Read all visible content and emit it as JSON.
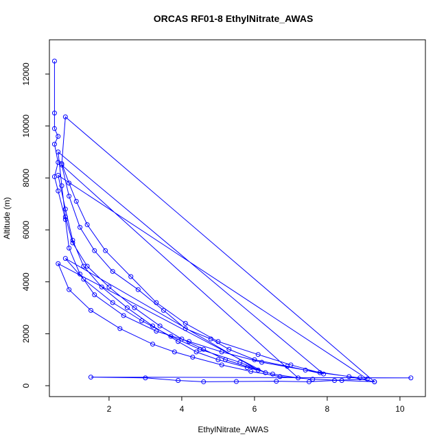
{
  "chart_data": {
    "type": "line",
    "title": "ORCAS RF01-8 EthylNitrate_AWAS",
    "x_label": "EthylNitrate_AWAS",
    "y_label": "Altitude (m)",
    "xlim": [
      0.36,
      10.7
    ],
    "ylim": [
      -420,
      13320
    ],
    "xticks": [
      2,
      4,
      6,
      8,
      10
    ],
    "yticks": [
      0,
      2000,
      4000,
      6000,
      8000,
      10000,
      12000
    ],
    "series": [
      {
        "name": "EthylNitrate_AWAS",
        "color": "#0000ff",
        "x": [
          0.5,
          0.5,
          0.5,
          0.6,
          0.5,
          0.6,
          0.5,
          0.6,
          0.8,
          0.9,
          1.2,
          1.6,
          2.4,
          3.3,
          4.2,
          5.1,
          6.2,
          7.4,
          8.6,
          9.3,
          0.8,
          0.7,
          0.9,
          1.1,
          1.4,
          1.9,
          2.6,
          3.3,
          4.1,
          5.0,
          6.1,
          7.0,
          7.8,
          8.9,
          10.3,
          1.5,
          3.0,
          3.9,
          4.6,
          5.5,
          6.6,
          7.5,
          8.2,
          9.1,
          0.6,
          0.8,
          1.0,
          1.3,
          1.8,
          2.5,
          3.2,
          3.9,
          4.4,
          5.0,
          5.8,
          6.5,
          7.2,
          0.7,
          0.9,
          1.2,
          1.6,
          2.1,
          2.8,
          3.5,
          4.1,
          4.8,
          5.3,
          6.0,
          6.9,
          7.9,
          0.6,
          0.7,
          0.8,
          1.0,
          1.4,
          2.0,
          2.7,
          3.4,
          4.0,
          4.6,
          5.2,
          6.1,
          0.8,
          1.3,
          2.1,
          2.9,
          3.7,
          4.5,
          5.6,
          6.3,
          0.6,
          0.9,
          1.5,
          2.3,
          3.2,
          3.8,
          4.3,
          5.1,
          5.9,
          6.7,
          7.6,
          8.4,
          9.3
        ],
        "values": [
          12500,
          10500,
          9900,
          9600,
          9300,
          8600,
          8050,
          7500,
          6400,
          5300,
          4300,
          3500,
          2700,
          2100,
          1700,
          1300,
          900,
          600,
          350,
          150,
          10350,
          8550,
          7800,
          7100,
          6200,
          5200,
          4200,
          3200,
          2400,
          1700,
          1200,
          800,
          500,
          300,
          300,
          330,
          300,
          200,
          150,
          160,
          170,
          150,
          200,
          260,
          8100,
          6800,
          5600,
          4600,
          3800,
          3000,
          2300,
          1700,
          1300,
          1000,
          700,
          450,
          300,
          8500,
          7300,
          6100,
          5200,
          4400,
          3700,
          2900,
          2200,
          1800,
          1400,
          1000,
          750,
          450,
          9000,
          7700,
          6500,
          5500,
          4600,
          3800,
          3000,
          2300,
          1800,
          1400,
          1000,
          600,
          4900,
          4100,
          3200,
          2500,
          1900,
          1400,
          900,
          500,
          4700,
          3700,
          2900,
          2200,
          1600,
          1300,
          1100,
          800,
          550,
          350,
          250,
          200,
          150
        ]
      }
    ]
  }
}
